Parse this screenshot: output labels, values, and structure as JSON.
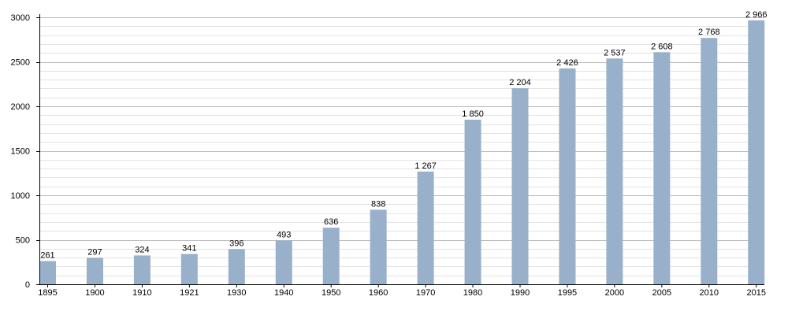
{
  "chart_data": {
    "type": "bar",
    "title": "",
    "xlabel": "",
    "ylabel": "",
    "categories": [
      "1895",
      "1900",
      "1910",
      "1921",
      "1930",
      "1940",
      "1950",
      "1960",
      "1970",
      "1980",
      "1990",
      "1995",
      "2000",
      "2005",
      "2010",
      "2015"
    ],
    "values": [
      261,
      297,
      324,
      341,
      396,
      493,
      636,
      838,
      1267,
      1850,
      2204,
      2426,
      2537,
      2608,
      2768,
      2966
    ],
    "value_labels": [
      "261",
      "297",
      "324",
      "341",
      "396",
      "493",
      "636",
      "838",
      "1 267",
      "1 850",
      "2 204",
      "2 426",
      "2 537",
      "2 608",
      "2 768",
      "2 966"
    ],
    "ylim": [
      0,
      3000
    ],
    "yticks": [
      "0",
      "500",
      "1000",
      "1500",
      "2000",
      "2500",
      "3000"
    ],
    "minor_step": 100,
    "grid": true,
    "legend": "none",
    "bar_color": "#98b0c9",
    "major_grid_color": "#b9b9b9",
    "minor_grid_color": "#e3e3e3"
  }
}
